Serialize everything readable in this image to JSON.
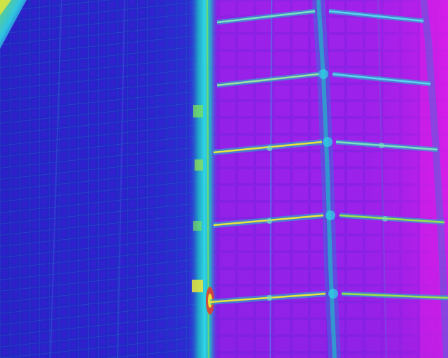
{
  "image": {
    "kind": "thermal-infrared-photo",
    "palette": "iron-rainbow",
    "colors": {
      "cold_blue": "#2a2fd6",
      "deep_blue": "#1f1cb0",
      "violet": "#7a1fe0",
      "purple": "#a11ee8",
      "magenta": "#d91ee8",
      "cyan": "#2fd6e6",
      "teal": "#20b8c8",
      "green_hot": "#7be35a",
      "yellow_hot": "#e8e83a",
      "red_hot": "#e83a2a"
    },
    "panel_rows": 5,
    "panel_columns_right": 3
  }
}
